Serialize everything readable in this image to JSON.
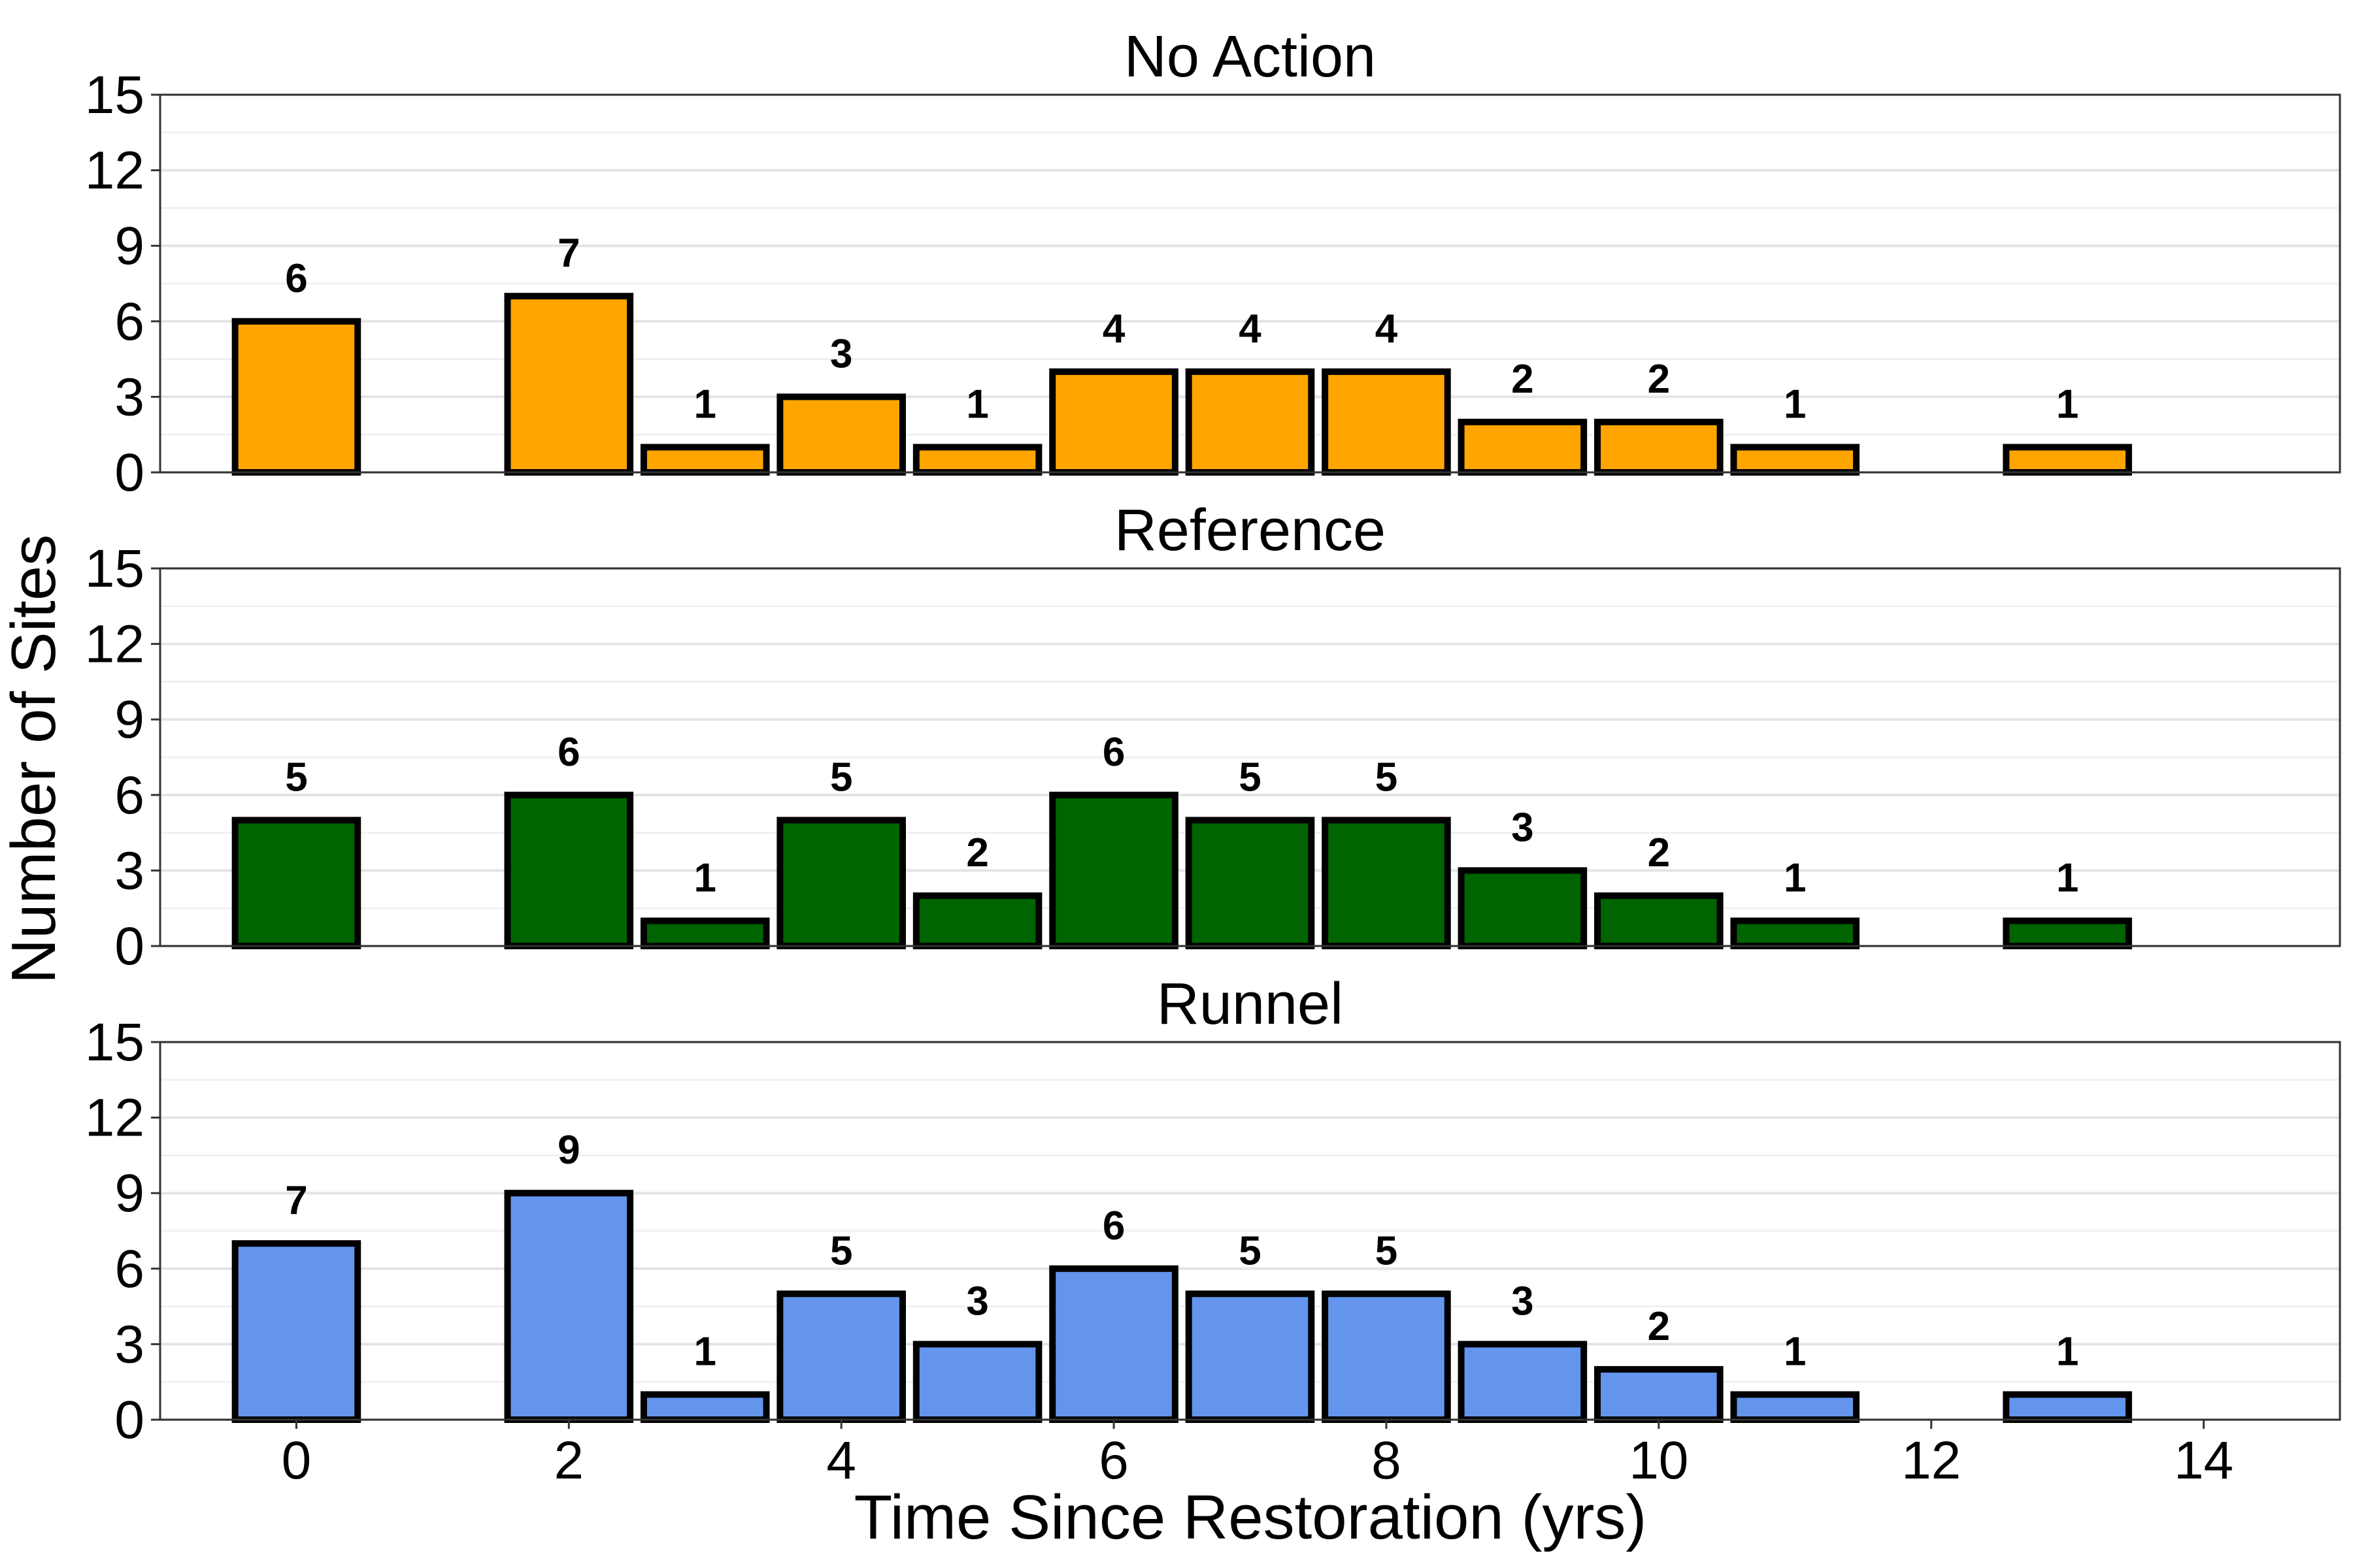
{
  "chart_data": {
    "type": "bar",
    "xlabel": "Time Since Restoration (yrs)",
    "ylabel": "Number of Sites",
    "xlim": [
      -1,
      15
    ],
    "xticks": [
      0,
      2,
      4,
      6,
      8,
      10,
      12,
      14
    ],
    "ylim": [
      0,
      15
    ],
    "yticks": [
      0,
      3,
      6,
      9,
      12,
      15
    ],
    "grid": true,
    "panels": [
      {
        "title": "No Action",
        "color": "#FFA500",
        "x": [
          0,
          2,
          3,
          4,
          5,
          6,
          7,
          8,
          9,
          10,
          11,
          13
        ],
        "values": [
          6,
          7,
          1,
          3,
          1,
          4,
          4,
          4,
          2,
          2,
          1,
          1
        ]
      },
      {
        "title": "Reference",
        "color": "#006400",
        "x": [
          0,
          2,
          3,
          4,
          5,
          6,
          7,
          8,
          9,
          10,
          11,
          13
        ],
        "values": [
          5,
          6,
          1,
          5,
          2,
          6,
          5,
          5,
          3,
          2,
          1,
          1
        ]
      },
      {
        "title": "Runnel",
        "color": "#6495ED",
        "x": [
          0,
          2,
          3,
          4,
          5,
          6,
          7,
          8,
          9,
          10,
          11,
          13
        ],
        "values": [
          7,
          9,
          1,
          5,
          3,
          6,
          5,
          5,
          3,
          2,
          1,
          1
        ]
      }
    ]
  }
}
